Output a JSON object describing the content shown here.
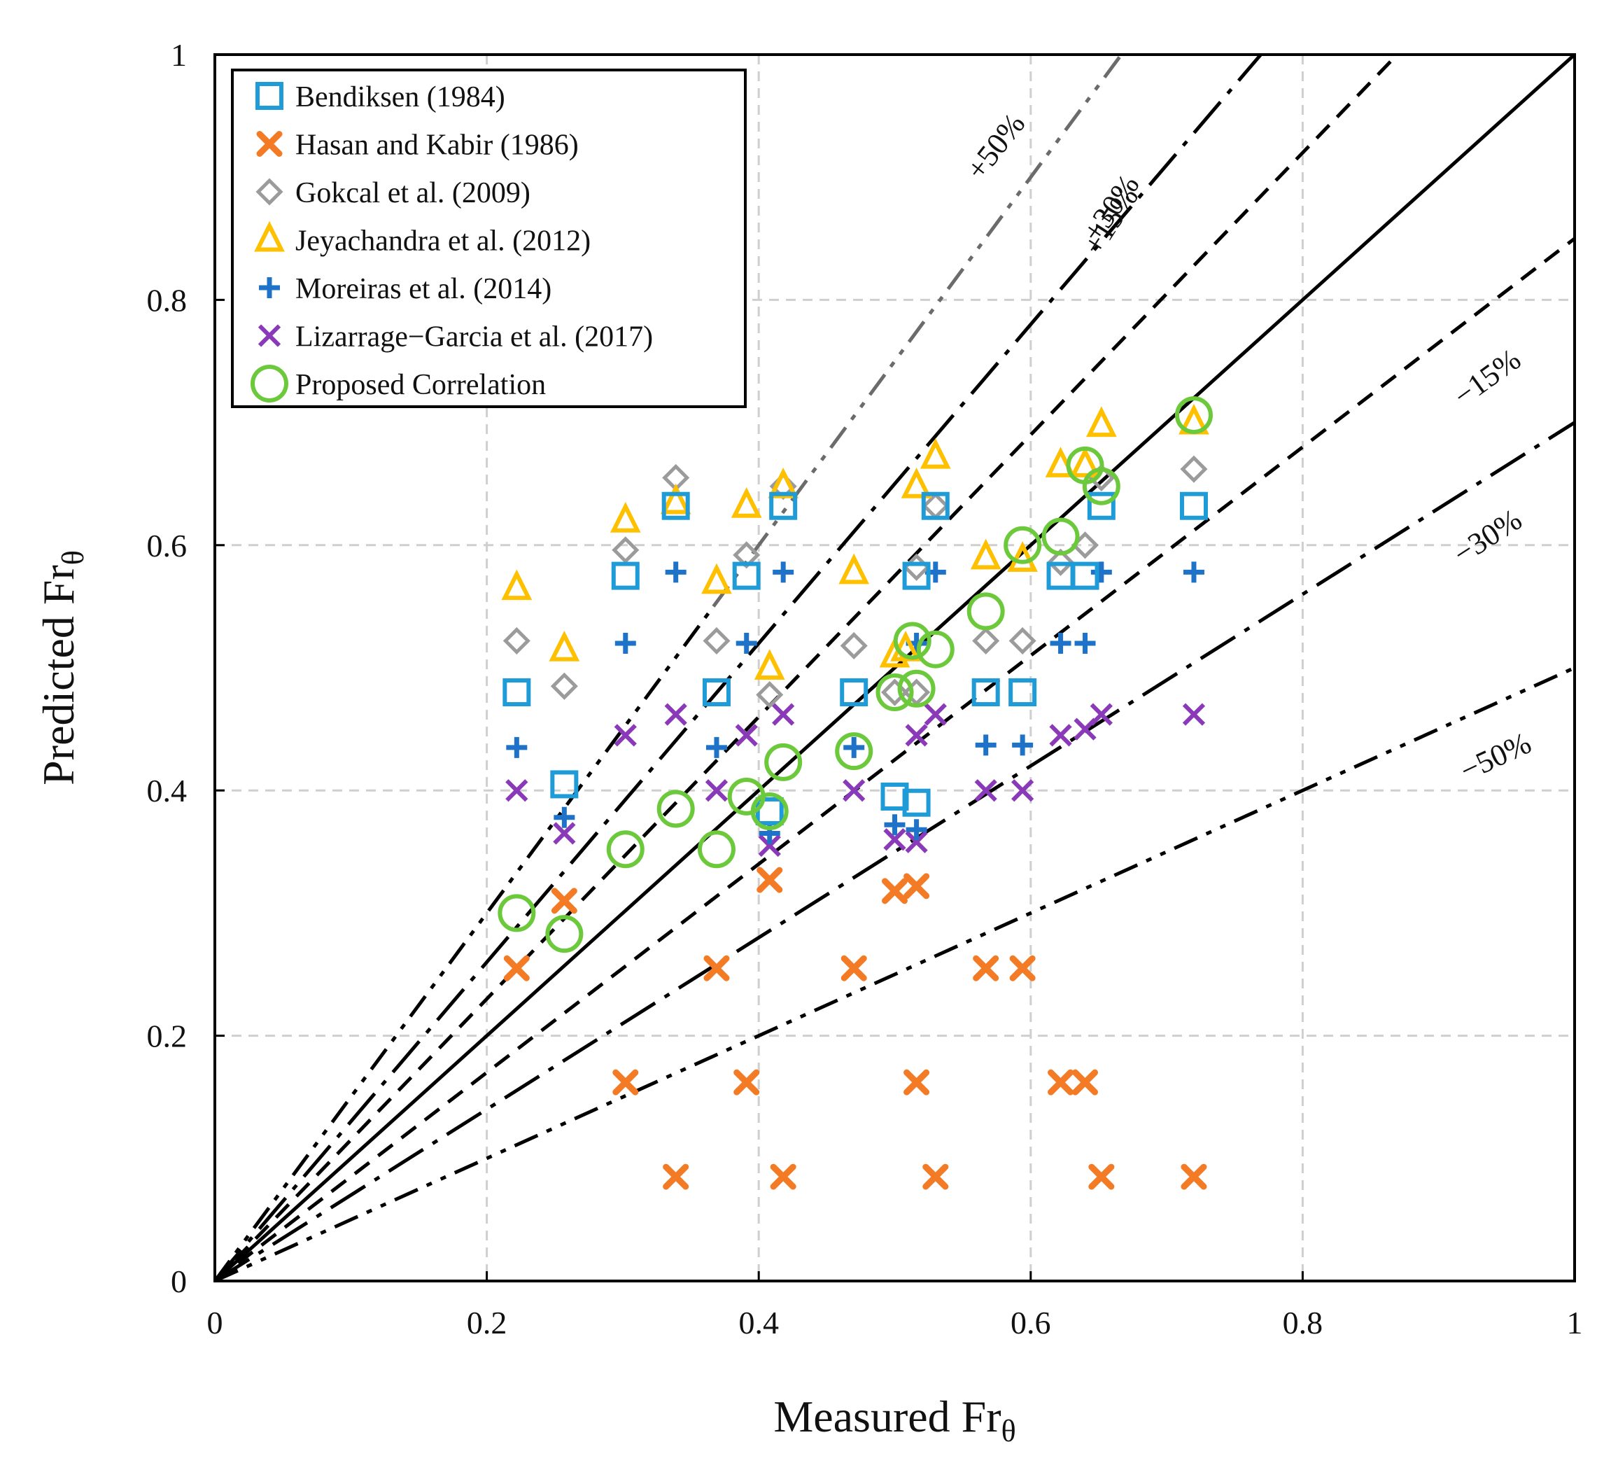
{
  "chart_data": {
    "type": "scatter",
    "xlabel": "Measured Fr",
    "ylabel": "Predicted Fr",
    "axis_subscript": "θ",
    "xlim": [
      0,
      1
    ],
    "ylim": [
      0,
      1
    ],
    "xticks": [
      "0",
      "0.2",
      "0.4",
      "0.6",
      "0.8",
      "1"
    ],
    "yticks": [
      "0",
      "0.2",
      "0.4",
      "0.6",
      "0.8",
      "1"
    ],
    "grid": true,
    "legend_position": "top-left",
    "reference_lines": [
      {
        "label": "",
        "slope": 1.0,
        "style": "solid"
      },
      {
        "label": "+15%",
        "slope": 1.15,
        "style": "dashed"
      },
      {
        "label": "−15%",
        "slope": 0.85,
        "style": "dashed"
      },
      {
        "label": "+30%",
        "slope": 1.3,
        "style": "dash-dot"
      },
      {
        "label": "−30%",
        "slope": 0.7,
        "style": "dash-dot"
      },
      {
        "label": "+50%",
        "slope": 1.5,
        "style": "dash-dot-dot"
      },
      {
        "label": "−50%",
        "slope": 0.5,
        "style": "dash-dot-dot"
      }
    ],
    "series": [
      {
        "name": "Bendiksen (1984)",
        "marker": "square",
        "color": "#1f9bd7",
        "points": [
          [
            0.222,
            0.48
          ],
          [
            0.257,
            0.405
          ],
          [
            0.302,
            0.575
          ],
          [
            0.339,
            0.632
          ],
          [
            0.369,
            0.48
          ],
          [
            0.391,
            0.575
          ],
          [
            0.408,
            0.383
          ],
          [
            0.418,
            0.632
          ],
          [
            0.47,
            0.48
          ],
          [
            0.5,
            0.395
          ],
          [
            0.516,
            0.39
          ],
          [
            0.516,
            0.575
          ],
          [
            0.53,
            0.632
          ],
          [
            0.567,
            0.48
          ],
          [
            0.594,
            0.48
          ],
          [
            0.622,
            0.575
          ],
          [
            0.64,
            0.575
          ],
          [
            0.652,
            0.632
          ],
          [
            0.72,
            0.632
          ]
        ]
      },
      {
        "name": "Hasan and Kabir (1986)",
        "marker": "x-bold",
        "color": "#f47b25",
        "points": [
          [
            0.222,
            0.255
          ],
          [
            0.257,
            0.31
          ],
          [
            0.302,
            0.162
          ],
          [
            0.339,
            0.085
          ],
          [
            0.369,
            0.255
          ],
          [
            0.391,
            0.162
          ],
          [
            0.408,
            0.327
          ],
          [
            0.418,
            0.085
          ],
          [
            0.47,
            0.255
          ],
          [
            0.5,
            0.318
          ],
          [
            0.516,
            0.322
          ],
          [
            0.516,
            0.162
          ],
          [
            0.53,
            0.085
          ],
          [
            0.567,
            0.255
          ],
          [
            0.594,
            0.255
          ],
          [
            0.622,
            0.162
          ],
          [
            0.64,
            0.162
          ],
          [
            0.652,
            0.085
          ],
          [
            0.72,
            0.085
          ]
        ]
      },
      {
        "name": "Gokcal et al. (2009)",
        "marker": "diamond",
        "color": "#9b9b9b",
        "points": [
          [
            0.222,
            0.522
          ],
          [
            0.257,
            0.485
          ],
          [
            0.302,
            0.596
          ],
          [
            0.339,
            0.655
          ],
          [
            0.369,
            0.522
          ],
          [
            0.391,
            0.592
          ],
          [
            0.408,
            0.478
          ],
          [
            0.418,
            0.648
          ],
          [
            0.47,
            0.518
          ],
          [
            0.5,
            0.48
          ],
          [
            0.516,
            0.48
          ],
          [
            0.516,
            0.582
          ],
          [
            0.53,
            0.632
          ],
          [
            0.567,
            0.522
          ],
          [
            0.594,
            0.522
          ],
          [
            0.622,
            0.586
          ],
          [
            0.64,
            0.6
          ],
          [
            0.652,
            0.655
          ],
          [
            0.72,
            0.662
          ]
        ]
      },
      {
        "name": "Jeyachandra et al. (2012)",
        "marker": "triangle",
        "color": "#ffc000",
        "points": [
          [
            0.222,
            0.565
          ],
          [
            0.257,
            0.515
          ],
          [
            0.302,
            0.62
          ],
          [
            0.339,
            0.635
          ],
          [
            0.369,
            0.57
          ],
          [
            0.391,
            0.632
          ],
          [
            0.408,
            0.5
          ],
          [
            0.418,
            0.648
          ],
          [
            0.47,
            0.578
          ],
          [
            0.5,
            0.51
          ],
          [
            0.516,
            0.648
          ],
          [
            0.53,
            0.672
          ],
          [
            0.567,
            0.59
          ],
          [
            0.594,
            0.588
          ],
          [
            0.622,
            0.665
          ],
          [
            0.64,
            0.665
          ],
          [
            0.652,
            0.698
          ],
          [
            0.72,
            0.7
          ],
          [
            0.508,
            0.515
          ]
        ]
      },
      {
        "name": "Moreiras et al. (2014)",
        "marker": "plus",
        "color": "#1e73c8",
        "points": [
          [
            0.222,
            0.435
          ],
          [
            0.257,
            0.378
          ],
          [
            0.302,
            0.52
          ],
          [
            0.339,
            0.578
          ],
          [
            0.369,
            0.435
          ],
          [
            0.391,
            0.52
          ],
          [
            0.408,
            0.365
          ],
          [
            0.418,
            0.578
          ],
          [
            0.47,
            0.435
          ],
          [
            0.5,
            0.372
          ],
          [
            0.516,
            0.368
          ],
          [
            0.516,
            0.52
          ],
          [
            0.53,
            0.578
          ],
          [
            0.567,
            0.437
          ],
          [
            0.594,
            0.437
          ],
          [
            0.622,
            0.52
          ],
          [
            0.64,
            0.52
          ],
          [
            0.652,
            0.578
          ],
          [
            0.72,
            0.578
          ]
        ]
      },
      {
        "name": "Lizarrage−Garcia et al. (2017)",
        "marker": "x",
        "color": "#8a3ab9",
        "points": [
          [
            0.222,
            0.4
          ],
          [
            0.257,
            0.365
          ],
          [
            0.302,
            0.445
          ],
          [
            0.339,
            0.462
          ],
          [
            0.369,
            0.4
          ],
          [
            0.391,
            0.445
          ],
          [
            0.408,
            0.355
          ],
          [
            0.418,
            0.462
          ],
          [
            0.47,
            0.4
          ],
          [
            0.5,
            0.36
          ],
          [
            0.516,
            0.358
          ],
          [
            0.516,
            0.445
          ],
          [
            0.53,
            0.462
          ],
          [
            0.567,
            0.4
          ],
          [
            0.594,
            0.4
          ],
          [
            0.622,
            0.445
          ],
          [
            0.64,
            0.45
          ],
          [
            0.652,
            0.462
          ],
          [
            0.72,
            0.462
          ]
        ]
      },
      {
        "name": "Proposed Correlation",
        "marker": "circle",
        "color": "#6cc93b",
        "points": [
          [
            0.222,
            0.3
          ],
          [
            0.257,
            0.283
          ],
          [
            0.302,
            0.352
          ],
          [
            0.339,
            0.385
          ],
          [
            0.369,
            0.352
          ],
          [
            0.391,
            0.395
          ],
          [
            0.408,
            0.383
          ],
          [
            0.418,
            0.423
          ],
          [
            0.47,
            0.432
          ],
          [
            0.5,
            0.48
          ],
          [
            0.513,
            0.522
          ],
          [
            0.516,
            0.483
          ],
          [
            0.53,
            0.515
          ],
          [
            0.567,
            0.546
          ],
          [
            0.594,
            0.6
          ],
          [
            0.622,
            0.607
          ],
          [
            0.64,
            0.665
          ],
          [
            0.652,
            0.648
          ],
          [
            0.72,
            0.706
          ]
        ]
      }
    ]
  }
}
